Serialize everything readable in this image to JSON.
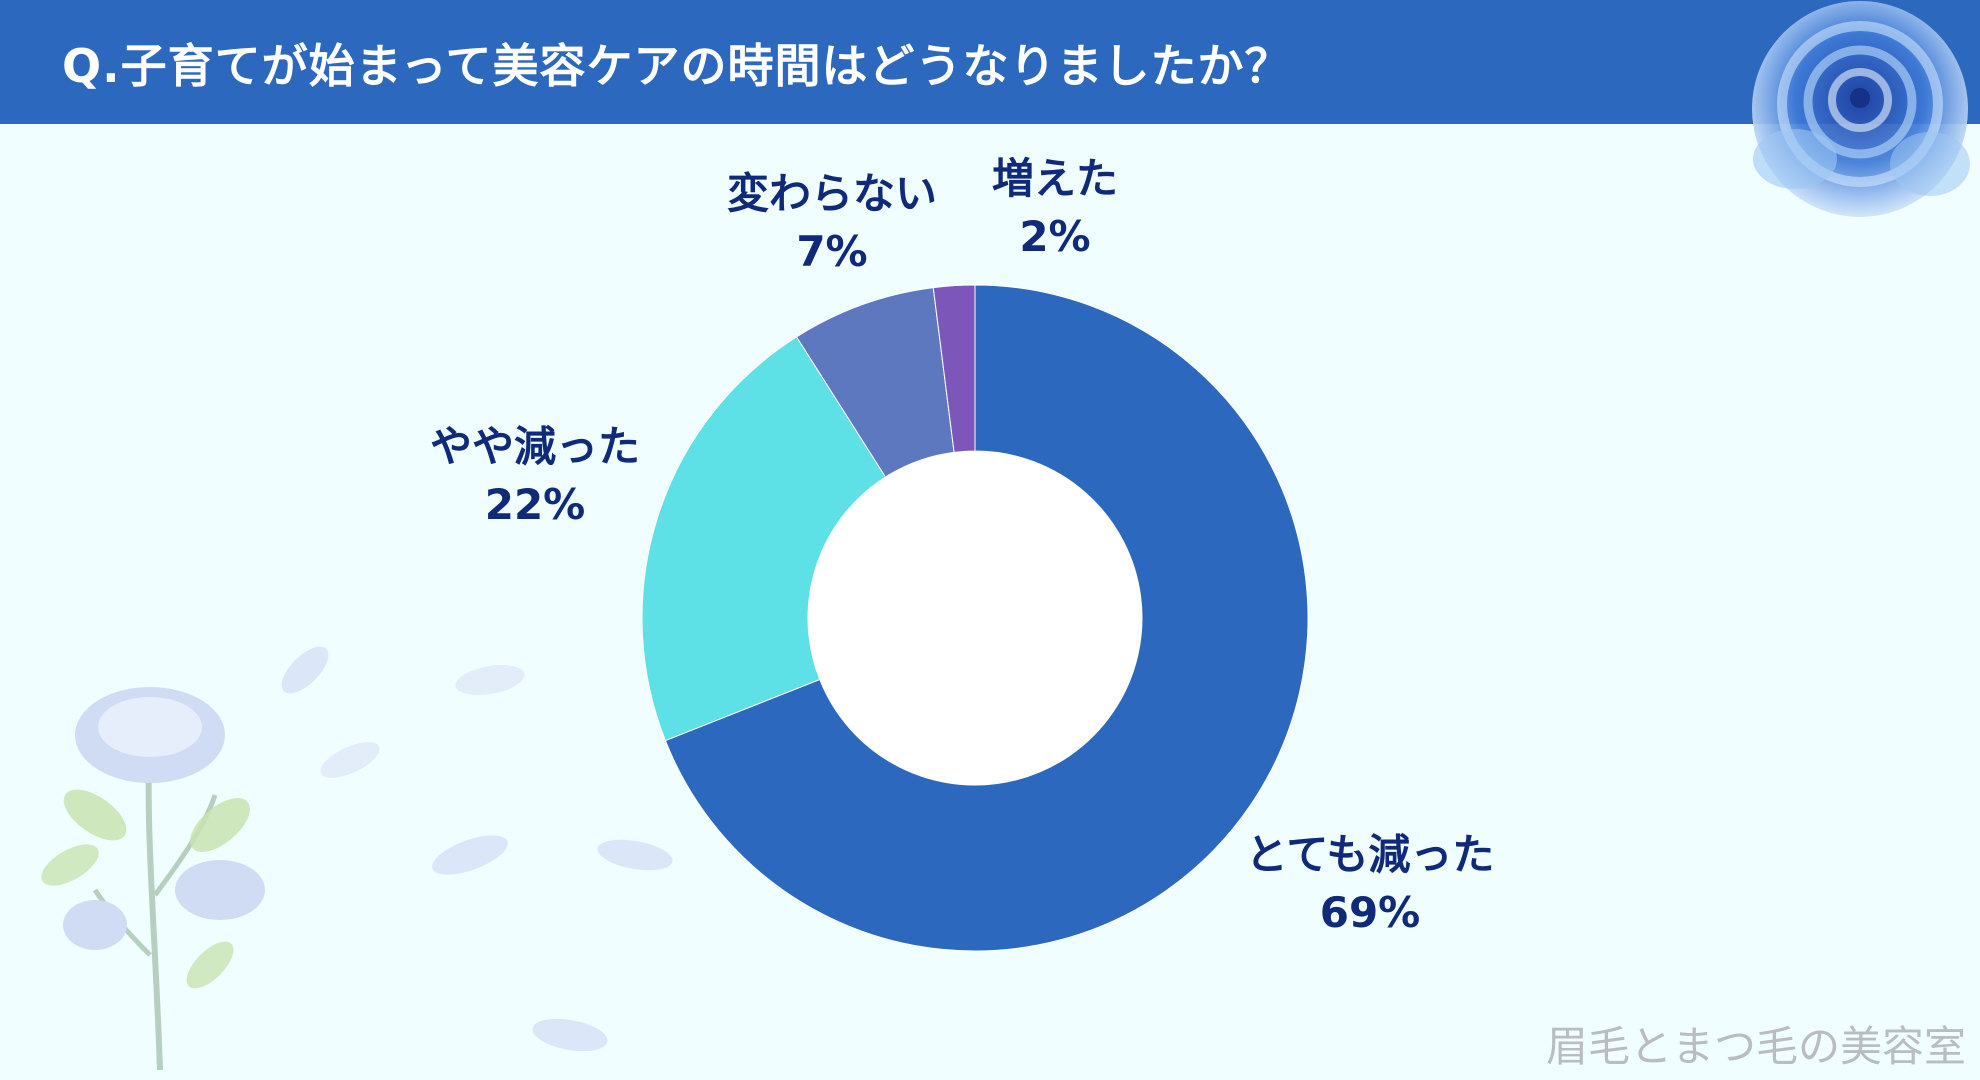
{
  "header": {
    "title": "Q.子育てが始まって美容ケアの時間はどうなりましたか？"
  },
  "chart_data": {
    "type": "pie",
    "title": "Q.子育てが始まって美容ケアの時間はどうなりましたか？",
    "categories": [
      "とても減った",
      "やや減った",
      "変わらない",
      "増えた"
    ],
    "values": [
      69,
      22,
      7,
      2
    ],
    "units": "%",
    "labels": [
      {
        "name": "とても減った",
        "value": "69%"
      },
      {
        "name": "やや減った",
        "value": "22%"
      },
      {
        "name": "変わらない",
        "value": "7%"
      },
      {
        "name": "増えた",
        "value": "2%"
      }
    ],
    "colors": [
      "#2c68be",
      "#5de0e6",
      "#5e78c0",
      "#7c56b8"
    ],
    "donut": true,
    "legend": "none"
  },
  "watermark": "眉毛とまつ毛の美容室",
  "decorations": {
    "top_right": "blue-rose-icon",
    "bottom_left": "blue-rose-branch-icon",
    "petals": "petal-icon"
  }
}
